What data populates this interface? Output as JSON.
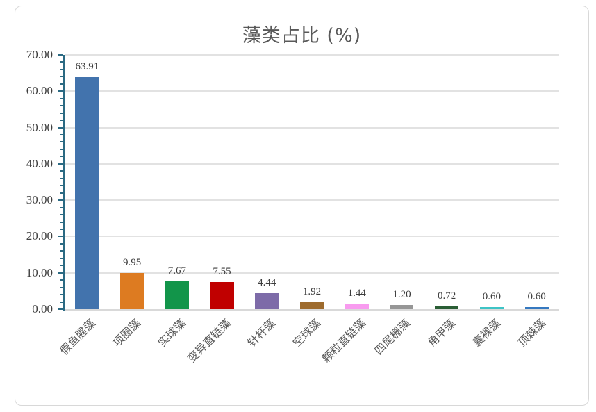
{
  "chart_data": {
    "type": "bar",
    "title": "藻类占比 (%)",
    "categories": [
      "假鱼腥藻",
      "项圈藻",
      "实球藻",
      "变异直链藻",
      "针杆藻",
      "空球藻",
      "颗粒直链藻",
      "四尾栅藻",
      "角甲藻",
      "囊裸藻",
      "顶棘藻"
    ],
    "values": [
      63.91,
      9.95,
      7.67,
      7.55,
      4.44,
      1.92,
      1.44,
      1.2,
      0.72,
      0.6,
      0.6
    ],
    "data_labels": [
      "63.91",
      "9.95",
      "7.67",
      "7.55",
      "4.44",
      "1.92",
      "1.44",
      "1.20",
      "0.72",
      "0.60",
      "0.60"
    ],
    "bar_colors": [
      "#4273AD",
      "#DD7B21",
      "#12954A",
      "#C00000",
      "#7D6BA8",
      "#9E6B2D",
      "#F89BEF",
      "#969696",
      "#2A5E35",
      "#3EC4C6",
      "#3579C0"
    ],
    "xlabel": "",
    "ylabel": "",
    "ylim": [
      0,
      70
    ],
    "y_tick_labels": [
      "70.00",
      "60.00",
      "50.00",
      "40.00",
      "30.00",
      "20.00",
      "10.00",
      "0.00"
    ],
    "y_major_step": 10,
    "y_minor_step": 2,
    "grid": true,
    "legend": false,
    "colors": {
      "title": "#595959",
      "axis_line": "#2B6A83",
      "gridline": "#E2E2E2",
      "baseline": "#D9D9D9",
      "tick_label": "#3F3F3F",
      "data_label": "#3C3C3C",
      "category_label": "#595959",
      "card_border": "#D8D8D8"
    }
  }
}
